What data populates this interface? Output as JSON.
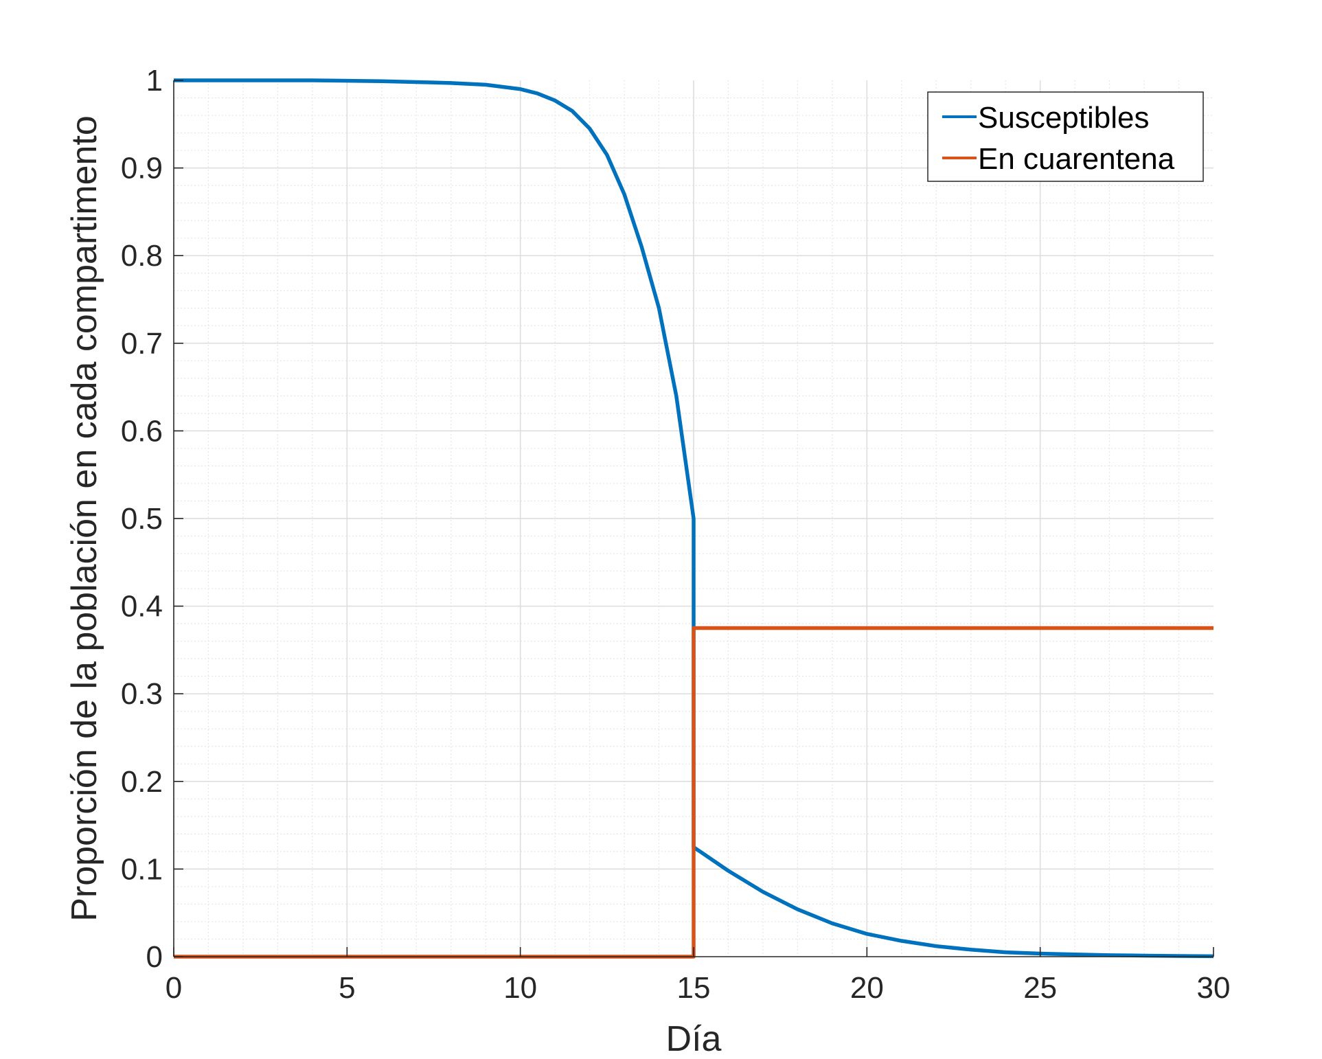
{
  "chart_data": {
    "type": "line",
    "title": "",
    "xlabel": "Día",
    "ylabel": "Proporción de la población en cada compartimento",
    "xlim": [
      0,
      30
    ],
    "ylim": [
      0,
      1
    ],
    "xticks": [
      0,
      5,
      10,
      15,
      20,
      25,
      30
    ],
    "yticks": [
      0,
      0.1,
      0.2,
      0.3,
      0.4,
      0.5,
      0.6,
      0.7,
      0.8,
      0.9,
      1
    ],
    "xtick_labels": [
      "0",
      "5",
      "10",
      "15",
      "20",
      "25",
      "30"
    ],
    "ytick_labels": [
      "0",
      "0.1",
      "0.2",
      "0.3",
      "0.4",
      "0.5",
      "0.6",
      "0.7",
      "0.8",
      "0.9",
      "1"
    ],
    "grid": true,
    "minor_grid": true,
    "legend_position": "top-right",
    "series": [
      {
        "name": "Susceptibles",
        "color": "#0072BD",
        "points": [
          [
            0,
            1.0
          ],
          [
            2,
            1.0
          ],
          [
            4,
            1.0
          ],
          [
            6,
            0.999
          ],
          [
            8,
            0.997
          ],
          [
            9,
            0.995
          ],
          [
            10,
            0.99
          ],
          [
            10.5,
            0.985
          ],
          [
            11,
            0.977
          ],
          [
            11.5,
            0.965
          ],
          [
            12,
            0.945
          ],
          [
            12.5,
            0.915
          ],
          [
            13,
            0.87
          ],
          [
            13.5,
            0.81
          ],
          [
            14,
            0.74
          ],
          [
            14.5,
            0.64
          ],
          [
            15,
            0.5
          ],
          [
            15,
            0.125
          ],
          [
            16,
            0.098
          ],
          [
            17,
            0.074
          ],
          [
            18,
            0.054
          ],
          [
            19,
            0.038
          ],
          [
            20,
            0.026
          ],
          [
            21,
            0.018
          ],
          [
            22,
            0.012
          ],
          [
            23,
            0.008
          ],
          [
            24,
            0.005
          ],
          [
            25,
            0.0035
          ],
          [
            26,
            0.0025
          ],
          [
            27,
            0.0017
          ],
          [
            28,
            0.0012
          ],
          [
            29,
            0.0008
          ],
          [
            30,
            0.0005
          ]
        ]
      },
      {
        "name": "En cuarentena",
        "color": "#D95319",
        "points": [
          [
            0,
            0
          ],
          [
            15,
            0
          ],
          [
            15,
            0.375
          ],
          [
            30,
            0.375
          ]
        ]
      }
    ]
  }
}
